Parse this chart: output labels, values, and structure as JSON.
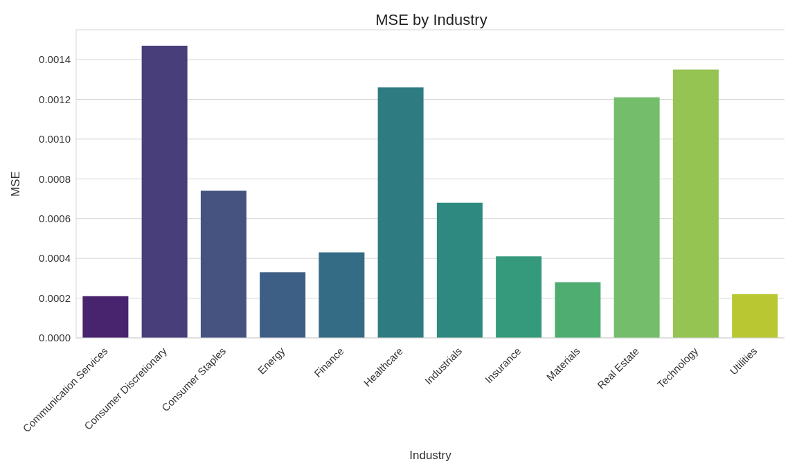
{
  "chart_data": {
    "type": "bar",
    "title": "MSE by Industry",
    "xlabel": "Industry",
    "ylabel": "MSE",
    "categories": [
      "Communication Services",
      "Consumer Discretionary",
      "Consumer Staples",
      "Energy",
      "Finance",
      "Healthcare",
      "Industrials",
      "Insurance",
      "Materials",
      "Real Estate",
      "Technology",
      "Utilities"
    ],
    "values": [
      0.00021,
      0.00147,
      0.00074,
      0.00033,
      0.00043,
      0.00126,
      0.00068,
      0.00041,
      0.00028,
      0.00121,
      0.00135,
      0.00022
    ],
    "colors": [
      "#48236e",
      "#473e7a",
      "#465381",
      "#3e5f85",
      "#356c85",
      "#2f7b82",
      "#2e8a80",
      "#359a7c",
      "#4fad71",
      "#74bd6a",
      "#95c452",
      "#b9c832"
    ],
    "ylim": [
      0,
      0.00155
    ],
    "yticks": [
      {
        "value": 0,
        "label": "0.0000"
      },
      {
        "value": 0.0002,
        "label": "0.0002"
      },
      {
        "value": 0.0004,
        "label": "0.0004"
      },
      {
        "value": 0.0006,
        "label": "0.0006"
      },
      {
        "value": 0.0008,
        "label": "0.0008"
      },
      {
        "value": 0.001,
        "label": "0.0010"
      },
      {
        "value": 0.0012,
        "label": "0.0012"
      },
      {
        "value": 0.0014,
        "label": "0.0014"
      }
    ],
    "grid": "y"
  }
}
